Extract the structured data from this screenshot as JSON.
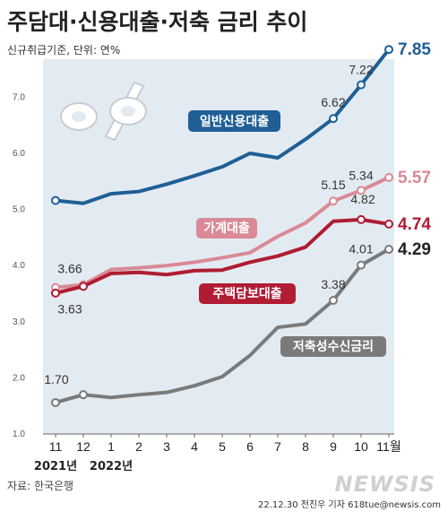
{
  "title": "주담대·신용대출·저축 금리 추이",
  "subtitle": "신규취급기준, 단위: 연%",
  "source": "자료: 한국은행",
  "credit": "22.12.30 전진우 기자 618tue@newsis.com",
  "logo_text": "NEWSIS",
  "year_labels": [
    "2021년",
    "2022년"
  ],
  "colors": {
    "credit": "#1f5f96",
    "household": "#d98a96",
    "mortgage": "#b01c33",
    "savings": "#7a7a7a",
    "plot_bg": "#e3ebf2"
  },
  "chart_data": {
    "type": "line",
    "title": "주담대·신용대출·저축 금리 추이",
    "ylabel": "",
    "xlabel": "",
    "ylim": [
      1.0,
      8.0
    ],
    "yticks": [
      "1.0",
      "2.0",
      "3.0",
      "4.0",
      "5.0",
      "6.0",
      "7.0"
    ],
    "categories": [
      "11",
      "12",
      "1",
      "2",
      "3",
      "4",
      "5",
      "6",
      "7",
      "8",
      "9",
      "10",
      "11월"
    ],
    "grid": false,
    "series": [
      {
        "key": "credit",
        "name": "일반신용대출",
        "values": [
          5.16,
          5.11,
          5.28,
          5.32,
          5.45,
          5.6,
          5.76,
          6.0,
          5.92,
          6.25,
          6.62,
          7.22,
          7.85
        ],
        "labels": {
          "10": "6.62",
          "11": "7.22",
          "12": "7.85"
        }
      },
      {
        "key": "household",
        "name": "가계대출",
        "values": [
          3.61,
          3.66,
          3.93,
          3.96,
          4.0,
          4.06,
          4.14,
          4.23,
          4.52,
          4.76,
          5.15,
          5.34,
          5.57
        ],
        "labels": {
          "1": "3.66",
          "10": "5.15",
          "11": "5.34",
          "12": "5.57"
        }
      },
      {
        "key": "mortgage",
        "name": "주택담보대출",
        "values": [
          3.51,
          3.63,
          3.86,
          3.88,
          3.84,
          3.91,
          3.92,
          4.06,
          4.17,
          4.33,
          4.79,
          4.82,
          4.74
        ],
        "labels": {
          "1": "3.63",
          "11": "4.82",
          "12": "4.74"
        }
      },
      {
        "key": "savings",
        "name": "저축성수신금리",
        "values": [
          1.56,
          1.7,
          1.65,
          1.7,
          1.74,
          1.86,
          2.02,
          2.4,
          2.9,
          2.96,
          3.38,
          4.01,
          4.29
        ],
        "labels": {
          "1": "1.70",
          "10": "3.38",
          "11": "4.01",
          "12": "4.29"
        }
      }
    ]
  }
}
